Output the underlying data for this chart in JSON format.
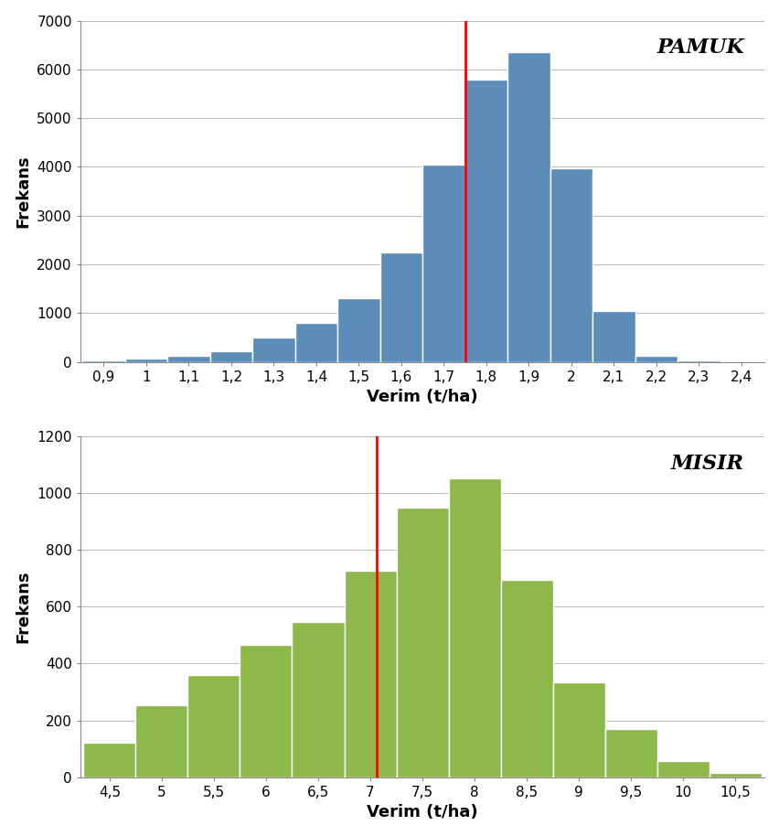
{
  "pamuk": {
    "bin_centers": [
      0.9,
      1.0,
      1.1,
      1.2,
      1.3,
      1.4,
      1.5,
      1.6,
      1.7,
      1.8,
      1.9,
      2.0,
      2.1,
      2.2,
      2.3,
      2.4
    ],
    "frequencies": [
      20,
      60,
      130,
      210,
      500,
      800,
      1300,
      2250,
      4050,
      5800,
      6350,
      3980,
      1050,
      120,
      30,
      10
    ],
    "bar_color": "#5B8DB8",
    "bar_edge_color": "#ffffff",
    "vline_x": 1.75,
    "vline_color": "red",
    "ylabel": "Frekans",
    "xlabel": "Verim (t/ha)",
    "label": "PAMUK",
    "ylim": [
      0,
      7000
    ],
    "yticks": [
      0,
      1000,
      2000,
      3000,
      4000,
      5000,
      6000,
      7000
    ],
    "bin_width": 0.1,
    "xlim_left": 0.845,
    "xlim_right": 2.455
  },
  "misir": {
    "bin_centers": [
      4.5,
      5.0,
      5.5,
      6.0,
      6.5,
      7.0,
      7.5,
      8.0,
      8.5,
      9.0,
      9.5,
      10.0,
      10.5
    ],
    "frequencies": [
      120,
      255,
      360,
      465,
      545,
      725,
      950,
      1050,
      695,
      335,
      170,
      57,
      15
    ],
    "bar_color": "#8DB84A",
    "bar_edge_color": "#ffffff",
    "vline_x": 7.06,
    "vline_color": "red",
    "ylabel": "Frekans",
    "xlabel": "Verim (t/ha)",
    "label": "MISIR",
    "ylim": [
      0,
      1200
    ],
    "yticks": [
      0,
      200,
      400,
      600,
      800,
      1000,
      1200
    ],
    "bin_width": 0.5,
    "xlim_left": 4.22,
    "xlim_right": 10.78
  },
  "figure_bg": "#ffffff",
  "axes_bg": "#ffffff",
  "grid_color": "#bbbbbb",
  "label_fontsize": 13,
  "tick_fontsize": 11,
  "title_fontsize": 16
}
